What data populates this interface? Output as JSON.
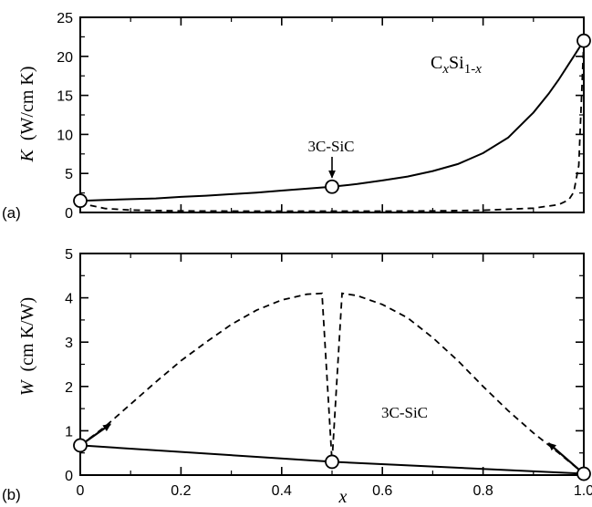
{
  "chart_data": [
    {
      "type": "line",
      "panel_label": "(a)",
      "ylabel": "K (W/cm K)",
      "ylabel_var": "K",
      "ylabel_unit": "(W/cm K)",
      "xlim": [
        0,
        1
      ],
      "ylim": [
        0,
        25
      ],
      "yticks": [
        0,
        5,
        10,
        15,
        20,
        25
      ],
      "ytick_labels": [
        "0",
        "5",
        "10",
        "15",
        "20",
        "25"
      ],
      "formula": {
        "c": "C",
        "x1": "x",
        "si": "Si",
        "sub": "1-",
        "x2": "x"
      },
      "annotations": [
        {
          "text": "3C-SiC",
          "x": 0.5,
          "arrow_to_y": 3.3
        }
      ],
      "series": [
        {
          "style": "solid",
          "x": [
            0.0,
            0.05,
            0.1,
            0.15,
            0.2,
            0.25,
            0.3,
            0.35,
            0.4,
            0.45,
            0.5,
            0.55,
            0.6,
            0.65,
            0.7,
            0.75,
            0.8,
            0.85,
            0.9,
            0.93,
            0.95,
            0.97,
            0.98,
            0.99,
            1.0
          ],
          "y": [
            1.5,
            1.6,
            1.7,
            1.8,
            2.0,
            2.15,
            2.35,
            2.55,
            2.8,
            3.05,
            3.3,
            3.65,
            4.1,
            4.6,
            5.3,
            6.2,
            7.6,
            9.6,
            12.8,
            15.2,
            17.0,
            19.0,
            20.0,
            21.0,
            22.0
          ]
        },
        {
          "style": "dashed",
          "x": [
            0.0,
            0.02,
            0.05,
            0.1,
            0.2,
            0.3,
            0.4,
            0.5,
            0.6,
            0.7,
            0.8,
            0.9,
            0.95,
            0.97,
            0.98,
            0.99,
            1.0
          ],
          "y": [
            1.5,
            0.9,
            0.5,
            0.3,
            0.2,
            0.18,
            0.17,
            0.17,
            0.18,
            0.2,
            0.28,
            0.55,
            1.0,
            1.6,
            2.6,
            6.0,
            22.0
          ]
        }
      ],
      "markers": [
        {
          "x": 0.0,
          "y": 1.5
        },
        {
          "x": 0.5,
          "y": 3.3
        },
        {
          "x": 1.0,
          "y": 22.0
        }
      ]
    },
    {
      "type": "line",
      "panel_label": "(b)",
      "xlabel": "x",
      "ylabel": "W (cm K/W)",
      "ylabel_var": "W",
      "ylabel_unit": "(cm K/W)",
      "xlim": [
        0,
        1
      ],
      "ylim": [
        0,
        5
      ],
      "xticks": [
        0,
        0.2,
        0.4,
        0.6,
        0.8,
        1.0
      ],
      "xtick_labels": [
        "0",
        "0.2",
        "0.4",
        "0.6",
        "0.8",
        "1.0"
      ],
      "yticks": [
        0,
        1,
        2,
        3,
        4,
        5
      ],
      "ytick_labels": [
        "0",
        "1",
        "2",
        "3",
        "4",
        "5"
      ],
      "annotations": [
        {
          "text": "3C-SiC",
          "x": 0.5
        }
      ],
      "series": [
        {
          "style": "solid",
          "x": [
            0.0,
            0.5,
            1.0
          ],
          "y": [
            0.67,
            0.3,
            0.03
          ]
        },
        {
          "style": "dashed",
          "x": [
            0.0,
            0.05,
            0.1,
            0.15,
            0.2,
            0.25,
            0.3,
            0.35,
            0.4,
            0.45,
            0.48,
            0.5,
            0.52,
            0.55,
            0.6,
            0.65,
            0.7,
            0.75,
            0.8,
            0.85,
            0.9,
            0.95,
            1.0
          ],
          "y": [
            0.67,
            1.1,
            1.6,
            2.1,
            2.58,
            3.0,
            3.4,
            3.72,
            3.95,
            4.08,
            4.1,
            0.3,
            4.1,
            4.05,
            3.85,
            3.55,
            3.1,
            2.58,
            2.0,
            1.45,
            0.95,
            0.5,
            0.03
          ]
        }
      ],
      "arrows": [
        {
          "from": [
            0.0,
            0.67
          ],
          "to": [
            0.06,
            1.15
          ]
        },
        {
          "from": [
            1.0,
            0.03
          ],
          "to": [
            0.93,
            0.72
          ]
        }
      ],
      "markers": [
        {
          "x": 0.0,
          "y": 0.67
        },
        {
          "x": 0.5,
          "y": 0.3
        },
        {
          "x": 1.0,
          "y": 0.03
        }
      ]
    }
  ]
}
